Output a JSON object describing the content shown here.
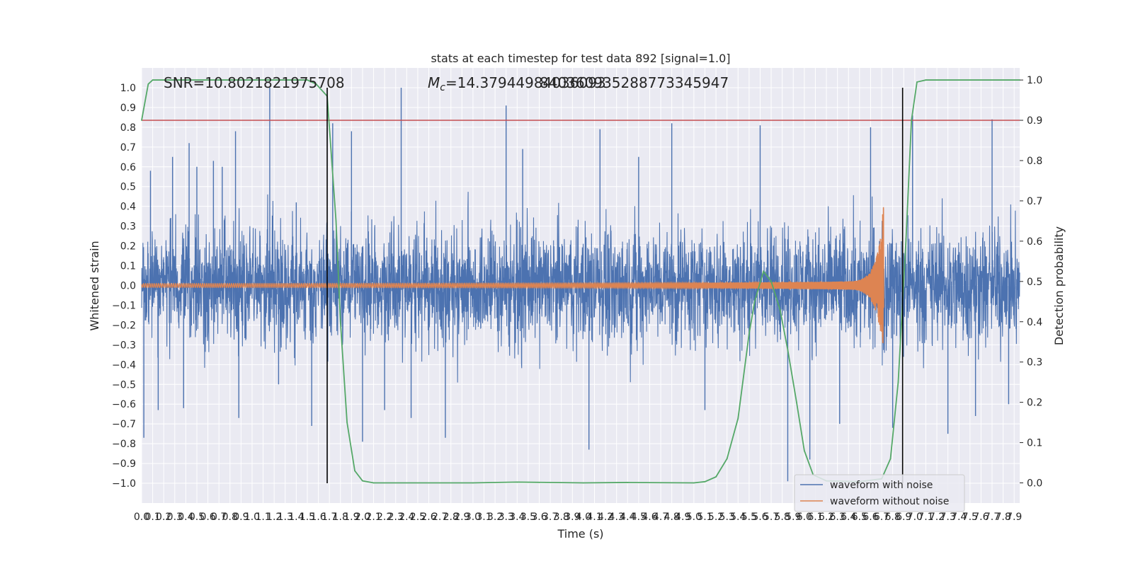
{
  "chart_data": {
    "type": "line",
    "title": "stats at each timestep for test data 892 [signal=1.0]",
    "xlabel": "Time (s)",
    "ylabel": "Whitened strain",
    "y2label": "Detection probability",
    "xlim": [
      0.0,
      7.95
    ],
    "ylim": [
      -1.1,
      1.1
    ],
    "y2lim": [
      -0.05,
      1.03
    ],
    "grid": true,
    "x_tick_step": 0.1,
    "y_ticks": [
      -1.0,
      -0.9,
      -0.8,
      -0.7,
      -0.6,
      -0.5,
      -0.4,
      -0.3,
      -0.2,
      -0.1,
      0.0,
      0.1,
      0.2,
      0.3,
      0.4,
      0.5,
      0.6,
      0.7,
      0.8,
      0.9,
      1.0
    ],
    "y2_ticks": [
      0.0,
      0.1,
      0.2,
      0.3,
      0.4,
      0.5,
      0.6,
      0.7,
      0.8,
      0.9,
      1.0
    ],
    "annotations": {
      "snr": "SNR=10.8021821975708",
      "mc_symbol": "M",
      "mc_subscript": "c",
      "mc_value": "=14.37944984036093",
      "mc_overlap": "840360935288773345947"
    },
    "threshold": {
      "axis": "y2",
      "value": 0.9,
      "color": "#c44e52"
    },
    "vertical_lines": [
      1.68,
      6.89
    ],
    "legend": {
      "placement": "lower-right",
      "entries": [
        "waveform with noise",
        "waveform without noise"
      ]
    },
    "series": [
      {
        "name": "waveform with noise",
        "axis": "y",
        "color": "#4c72b0",
        "envelope_typical": 0.42,
        "spikes": [
          {
            "x": 0.02,
            "y": -0.77
          },
          {
            "x": 0.08,
            "y": 0.58
          },
          {
            "x": 0.15,
            "y": -0.63
          },
          {
            "x": 0.28,
            "y": 0.65
          },
          {
            "x": 0.38,
            "y": -0.62
          },
          {
            "x": 0.43,
            "y": 0.72
          },
          {
            "x": 0.5,
            "y": 0.6
          },
          {
            "x": 0.65,
            "y": 0.63
          },
          {
            "x": 0.73,
            "y": 0.6
          },
          {
            "x": 0.85,
            "y": 0.78
          },
          {
            "x": 0.88,
            "y": -0.67
          },
          {
            "x": 1.16,
            "y": 1.0
          },
          {
            "x": 1.24,
            "y": -0.5
          },
          {
            "x": 1.4,
            "y": 0.42
          },
          {
            "x": 1.54,
            "y": -0.71
          },
          {
            "x": 1.73,
            "y": 0.82
          },
          {
            "x": 1.9,
            "y": 0.78
          },
          {
            "x": 2.0,
            "y": -0.79
          },
          {
            "x": 2.2,
            "y": -0.63
          },
          {
            "x": 2.35,
            "y": 1.0
          },
          {
            "x": 2.44,
            "y": -0.67
          },
          {
            "x": 2.75,
            "y": -0.77
          },
          {
            "x": 3.3,
            "y": 0.91
          },
          {
            "x": 3.45,
            "y": 0.69
          },
          {
            "x": 4.05,
            "y": -0.83
          },
          {
            "x": 4.15,
            "y": 0.79
          },
          {
            "x": 4.5,
            "y": 0.65
          },
          {
            "x": 4.8,
            "y": 0.82
          },
          {
            "x": 5.1,
            "y": -0.63
          },
          {
            "x": 5.6,
            "y": 0.81
          },
          {
            "x": 5.85,
            "y": -0.99
          },
          {
            "x": 6.05,
            "y": -0.88
          },
          {
            "x": 6.32,
            "y": -0.7
          },
          {
            "x": 6.6,
            "y": 0.8
          },
          {
            "x": 6.8,
            "y": -0.72
          },
          {
            "x": 6.98,
            "y": 0.86
          },
          {
            "x": 7.3,
            "y": -0.75
          },
          {
            "x": 7.55,
            "y": -0.66
          },
          {
            "x": 7.7,
            "y": 0.84
          },
          {
            "x": 7.85,
            "y": -0.6
          }
        ]
      },
      {
        "name": "waveform without noise",
        "axis": "y",
        "color": "#dd8452",
        "chirp": {
          "amp_start": 0.01,
          "amp_peak": 0.4,
          "peak_time": 6.7,
          "end_time": 6.72
        }
      },
      {
        "name": "",
        "axis": "y2",
        "color": "#55a868",
        "points": [
          [
            0.0,
            0.9
          ],
          [
            0.06,
            0.99
          ],
          [
            0.1,
            1.0
          ],
          [
            0.3,
            1.0
          ],
          [
            1.5,
            1.0
          ],
          [
            1.58,
            0.99
          ],
          [
            1.68,
            0.96
          ],
          [
            1.76,
            0.65
          ],
          [
            1.8,
            0.4
          ],
          [
            1.86,
            0.15
          ],
          [
            1.93,
            0.03
          ],
          [
            2.0,
            0.005
          ],
          [
            2.1,
            0.0
          ],
          [
            3.0,
            0.0
          ],
          [
            3.4,
            0.002
          ],
          [
            4.0,
            0.0
          ],
          [
            4.4,
            0.001
          ],
          [
            5.0,
            0.0
          ],
          [
            5.1,
            0.003
          ],
          [
            5.2,
            0.015
          ],
          [
            5.3,
            0.06
          ],
          [
            5.4,
            0.16
          ],
          [
            5.5,
            0.37
          ],
          [
            5.55,
            0.45
          ],
          [
            5.63,
            0.525
          ],
          [
            5.7,
            0.5
          ],
          [
            5.78,
            0.43
          ],
          [
            5.85,
            0.33
          ],
          [
            5.93,
            0.2
          ],
          [
            6.0,
            0.08
          ],
          [
            6.08,
            0.02
          ],
          [
            6.2,
            0.005
          ],
          [
            6.5,
            0.003
          ],
          [
            6.7,
            0.01
          ],
          [
            6.78,
            0.06
          ],
          [
            6.85,
            0.25
          ],
          [
            6.92,
            0.6
          ],
          [
            6.97,
            0.9
          ],
          [
            7.02,
            0.995
          ],
          [
            7.1,
            1.0
          ],
          [
            7.95,
            1.0
          ]
        ]
      }
    ]
  }
}
